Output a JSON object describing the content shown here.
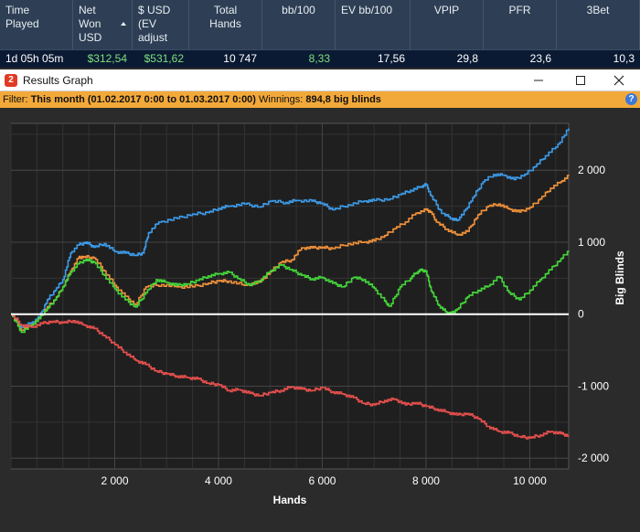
{
  "header": {
    "columns": [
      {
        "label": "Time\nPlayed",
        "value": "1d 05h 05m",
        "value_color": "#ffffff"
      },
      {
        "label": "Net\nWon\nUSD",
        "value": "$312,54",
        "value_color": "#7ee07e",
        "sorted": true
      },
      {
        "label": "$ USD\n(EV\nadjust",
        "value": "$531,62",
        "value_color": "#7ee07e"
      },
      {
        "label": "Total\nHands",
        "value": "10 747",
        "value_color": "#ffffff"
      },
      {
        "label": "bb/100",
        "value": "8,33",
        "value_color": "#7ee07e"
      },
      {
        "label": "EV bb/100",
        "value": "17,56",
        "value_color": "#ffffff"
      },
      {
        "label": "VPIP",
        "value": "29,8",
        "value_color": "#ffffff"
      },
      {
        "label": "PFR",
        "value": "23,6",
        "value_color": "#ffffff"
      },
      {
        "label": "3Bet",
        "value": "10,3",
        "value_color": "#ffffff"
      }
    ]
  },
  "window": {
    "app_icon": "2",
    "title": "Results Graph",
    "minimize_icon": "minimize-icon",
    "maximize_icon": "maximize-icon",
    "close_icon": "close-icon"
  },
  "filter": {
    "prefix": "Filter: ",
    "range": "This month (01.02.2017 0:00 to 01.03.2017 0:00)",
    "winnings_label": " Winnings: ",
    "winnings_value": "894,8 big blinds",
    "help_icon": "?"
  },
  "colors": {
    "blue": "#3d9be9",
    "orange": "#f0913a",
    "green": "#44d63a",
    "red": "#e8504e",
    "zero_line": "#ffffff",
    "grid": "#444444",
    "plot_bg": "#1f1f1f"
  },
  "chart_data": {
    "type": "line",
    "xlabel": "Hands",
    "ylabel": "Big Blinds",
    "xlim": [
      0,
      10750
    ],
    "ylim": [
      -2150,
      2650
    ],
    "xticks": [
      2000,
      4000,
      6000,
      8000,
      10000
    ],
    "xtick_labels": [
      "2 000",
      "4 000",
      "6 000",
      "8 000",
      "10 000"
    ],
    "yticks": [
      2000,
      1000,
      0,
      -1000,
      -2000
    ],
    "ytick_labels": [
      "2 000",
      "1 000",
      "0",
      "-1 000",
      "-2 000"
    ],
    "grid": true,
    "legend": "none",
    "series": [
      {
        "color": "#3d9be9",
        "points": [
          [
            0,
            0
          ],
          [
            200,
            -180
          ],
          [
            400,
            -120
          ],
          [
            550,
            -40
          ],
          [
            700,
            200
          ],
          [
            850,
            330
          ],
          [
            1000,
            480
          ],
          [
            1150,
            850
          ],
          [
            1300,
            960
          ],
          [
            1450,
            1000
          ],
          [
            1600,
            930
          ],
          [
            1800,
            980
          ],
          [
            2000,
            870
          ],
          [
            2200,
            850
          ],
          [
            2400,
            820
          ],
          [
            2550,
            850
          ],
          [
            2650,
            1130
          ],
          [
            2850,
            1280
          ],
          [
            3200,
            1330
          ],
          [
            3500,
            1390
          ],
          [
            3800,
            1410
          ],
          [
            4000,
            1470
          ],
          [
            4200,
            1500
          ],
          [
            4500,
            1530
          ],
          [
            4800,
            1490
          ],
          [
            5000,
            1570
          ],
          [
            5300,
            1550
          ],
          [
            5500,
            1580
          ],
          [
            5800,
            1570
          ],
          [
            6000,
            1540
          ],
          [
            6200,
            1450
          ],
          [
            6500,
            1520
          ],
          [
            6800,
            1570
          ],
          [
            7000,
            1580
          ],
          [
            7300,
            1600
          ],
          [
            7500,
            1660
          ],
          [
            7700,
            1720
          ],
          [
            7900,
            1770
          ],
          [
            8000,
            1800
          ],
          [
            8100,
            1640
          ],
          [
            8300,
            1400
          ],
          [
            8500,
            1330
          ],
          [
            8600,
            1300
          ],
          [
            8700,
            1380
          ],
          [
            8900,
            1620
          ],
          [
            9100,
            1840
          ],
          [
            9300,
            1940
          ],
          [
            9500,
            1930
          ],
          [
            9700,
            1870
          ],
          [
            9900,
            1940
          ],
          [
            10100,
            2050
          ],
          [
            10300,
            2200
          ],
          [
            10500,
            2320
          ],
          [
            10750,
            2580
          ]
        ]
      },
      {
        "color": "#f0913a",
        "points": [
          [
            0,
            0
          ],
          [
            200,
            -220
          ],
          [
            400,
            -150
          ],
          [
            550,
            -60
          ],
          [
            700,
            100
          ],
          [
            850,
            200
          ],
          [
            1000,
            380
          ],
          [
            1150,
            600
          ],
          [
            1300,
            780
          ],
          [
            1400,
            800
          ],
          [
            1600,
            780
          ],
          [
            1800,
            600
          ],
          [
            2000,
            400
          ],
          [
            2200,
            250
          ],
          [
            2400,
            130
          ],
          [
            2600,
            380
          ],
          [
            2900,
            410
          ],
          [
            3200,
            380
          ],
          [
            3500,
            380
          ],
          [
            3800,
            430
          ],
          [
            4000,
            460
          ],
          [
            4200,
            460
          ],
          [
            4500,
            400
          ],
          [
            4800,
            450
          ],
          [
            5000,
            590
          ],
          [
            5200,
            720
          ],
          [
            5400,
            750
          ],
          [
            5600,
            920
          ],
          [
            5800,
            920
          ],
          [
            6000,
            930
          ],
          [
            6200,
            910
          ],
          [
            6500,
            980
          ],
          [
            6800,
            1000
          ],
          [
            7000,
            1020
          ],
          [
            7200,
            1090
          ],
          [
            7400,
            1190
          ],
          [
            7600,
            1280
          ],
          [
            7800,
            1400
          ],
          [
            8000,
            1450
          ],
          [
            8100,
            1420
          ],
          [
            8200,
            1280
          ],
          [
            8400,
            1180
          ],
          [
            8600,
            1100
          ],
          [
            8800,
            1150
          ],
          [
            9000,
            1380
          ],
          [
            9200,
            1500
          ],
          [
            9400,
            1530
          ],
          [
            9600,
            1460
          ],
          [
            9800,
            1420
          ],
          [
            10000,
            1480
          ],
          [
            10200,
            1600
          ],
          [
            10400,
            1750
          ],
          [
            10600,
            1840
          ],
          [
            10750,
            1920
          ]
        ]
      },
      {
        "color": "#44d63a",
        "points": [
          [
            0,
            0
          ],
          [
            200,
            -250
          ],
          [
            400,
            -150
          ],
          [
            550,
            -60
          ],
          [
            700,
            80
          ],
          [
            850,
            200
          ],
          [
            1000,
            380
          ],
          [
            1150,
            580
          ],
          [
            1300,
            700
          ],
          [
            1450,
            760
          ],
          [
            1600,
            720
          ],
          [
            1800,
            540
          ],
          [
            2000,
            350
          ],
          [
            2200,
            200
          ],
          [
            2400,
            100
          ],
          [
            2600,
            300
          ],
          [
            2800,
            480
          ],
          [
            3000,
            440
          ],
          [
            3200,
            400
          ],
          [
            3400,
            420
          ],
          [
            3600,
            470
          ],
          [
            3800,
            530
          ],
          [
            4000,
            560
          ],
          [
            4200,
            580
          ],
          [
            4400,
            490
          ],
          [
            4600,
            400
          ],
          [
            4800,
            470
          ],
          [
            5000,
            600
          ],
          [
            5200,
            680
          ],
          [
            5400,
            620
          ],
          [
            5600,
            540
          ],
          [
            5800,
            490
          ],
          [
            6000,
            510
          ],
          [
            6200,
            430
          ],
          [
            6400,
            380
          ],
          [
            6600,
            510
          ],
          [
            6800,
            480
          ],
          [
            7000,
            360
          ],
          [
            7200,
            180
          ],
          [
            7300,
            110
          ],
          [
            7500,
            380
          ],
          [
            7700,
            500
          ],
          [
            7800,
            570
          ],
          [
            7900,
            610
          ],
          [
            8000,
            600
          ],
          [
            8100,
            320
          ],
          [
            8250,
            120
          ],
          [
            8400,
            20
          ],
          [
            8500,
            10
          ],
          [
            8600,
            70
          ],
          [
            8800,
            240
          ],
          [
            9000,
            330
          ],
          [
            9200,
            390
          ],
          [
            9400,
            520
          ],
          [
            9600,
            300
          ],
          [
            9800,
            200
          ],
          [
            10000,
            330
          ],
          [
            10200,
            480
          ],
          [
            10400,
            620
          ],
          [
            10600,
            770
          ],
          [
            10750,
            880
          ]
        ]
      },
      {
        "color": "#e8504e",
        "points": [
          [
            0,
            0
          ],
          [
            200,
            -150
          ],
          [
            400,
            -180
          ],
          [
            600,
            -130
          ],
          [
            800,
            -100
          ],
          [
            1000,
            -120
          ],
          [
            1200,
            -90
          ],
          [
            1400,
            -150
          ],
          [
            1600,
            -200
          ],
          [
            1800,
            -300
          ],
          [
            2000,
            -420
          ],
          [
            2200,
            -530
          ],
          [
            2400,
            -640
          ],
          [
            2600,
            -700
          ],
          [
            2800,
            -790
          ],
          [
            3000,
            -830
          ],
          [
            3200,
            -860
          ],
          [
            3400,
            -880
          ],
          [
            3600,
            -900
          ],
          [
            3800,
            -960
          ],
          [
            4000,
            -980
          ],
          [
            4200,
            -1060
          ],
          [
            4400,
            -1050
          ],
          [
            4600,
            -1100
          ],
          [
            4800,
            -1130
          ],
          [
            5000,
            -1090
          ],
          [
            5200,
            -1060
          ],
          [
            5400,
            -1010
          ],
          [
            5600,
            -1040
          ],
          [
            5800,
            -1060
          ],
          [
            6000,
            -1020
          ],
          [
            6200,
            -1080
          ],
          [
            6400,
            -1110
          ],
          [
            6600,
            -1160
          ],
          [
            6800,
            -1240
          ],
          [
            7000,
            -1260
          ],
          [
            7200,
            -1200
          ],
          [
            7400,
            -1180
          ],
          [
            7600,
            -1260
          ],
          [
            7800,
            -1230
          ],
          [
            8000,
            -1280
          ],
          [
            8200,
            -1320
          ],
          [
            8400,
            -1360
          ],
          [
            8600,
            -1400
          ],
          [
            8800,
            -1380
          ],
          [
            9000,
            -1450
          ],
          [
            9200,
            -1560
          ],
          [
            9400,
            -1630
          ],
          [
            9600,
            -1650
          ],
          [
            9800,
            -1700
          ],
          [
            10000,
            -1720
          ],
          [
            10200,
            -1680
          ],
          [
            10400,
            -1630
          ],
          [
            10600,
            -1660
          ],
          [
            10750,
            -1690
          ]
        ]
      }
    ]
  }
}
